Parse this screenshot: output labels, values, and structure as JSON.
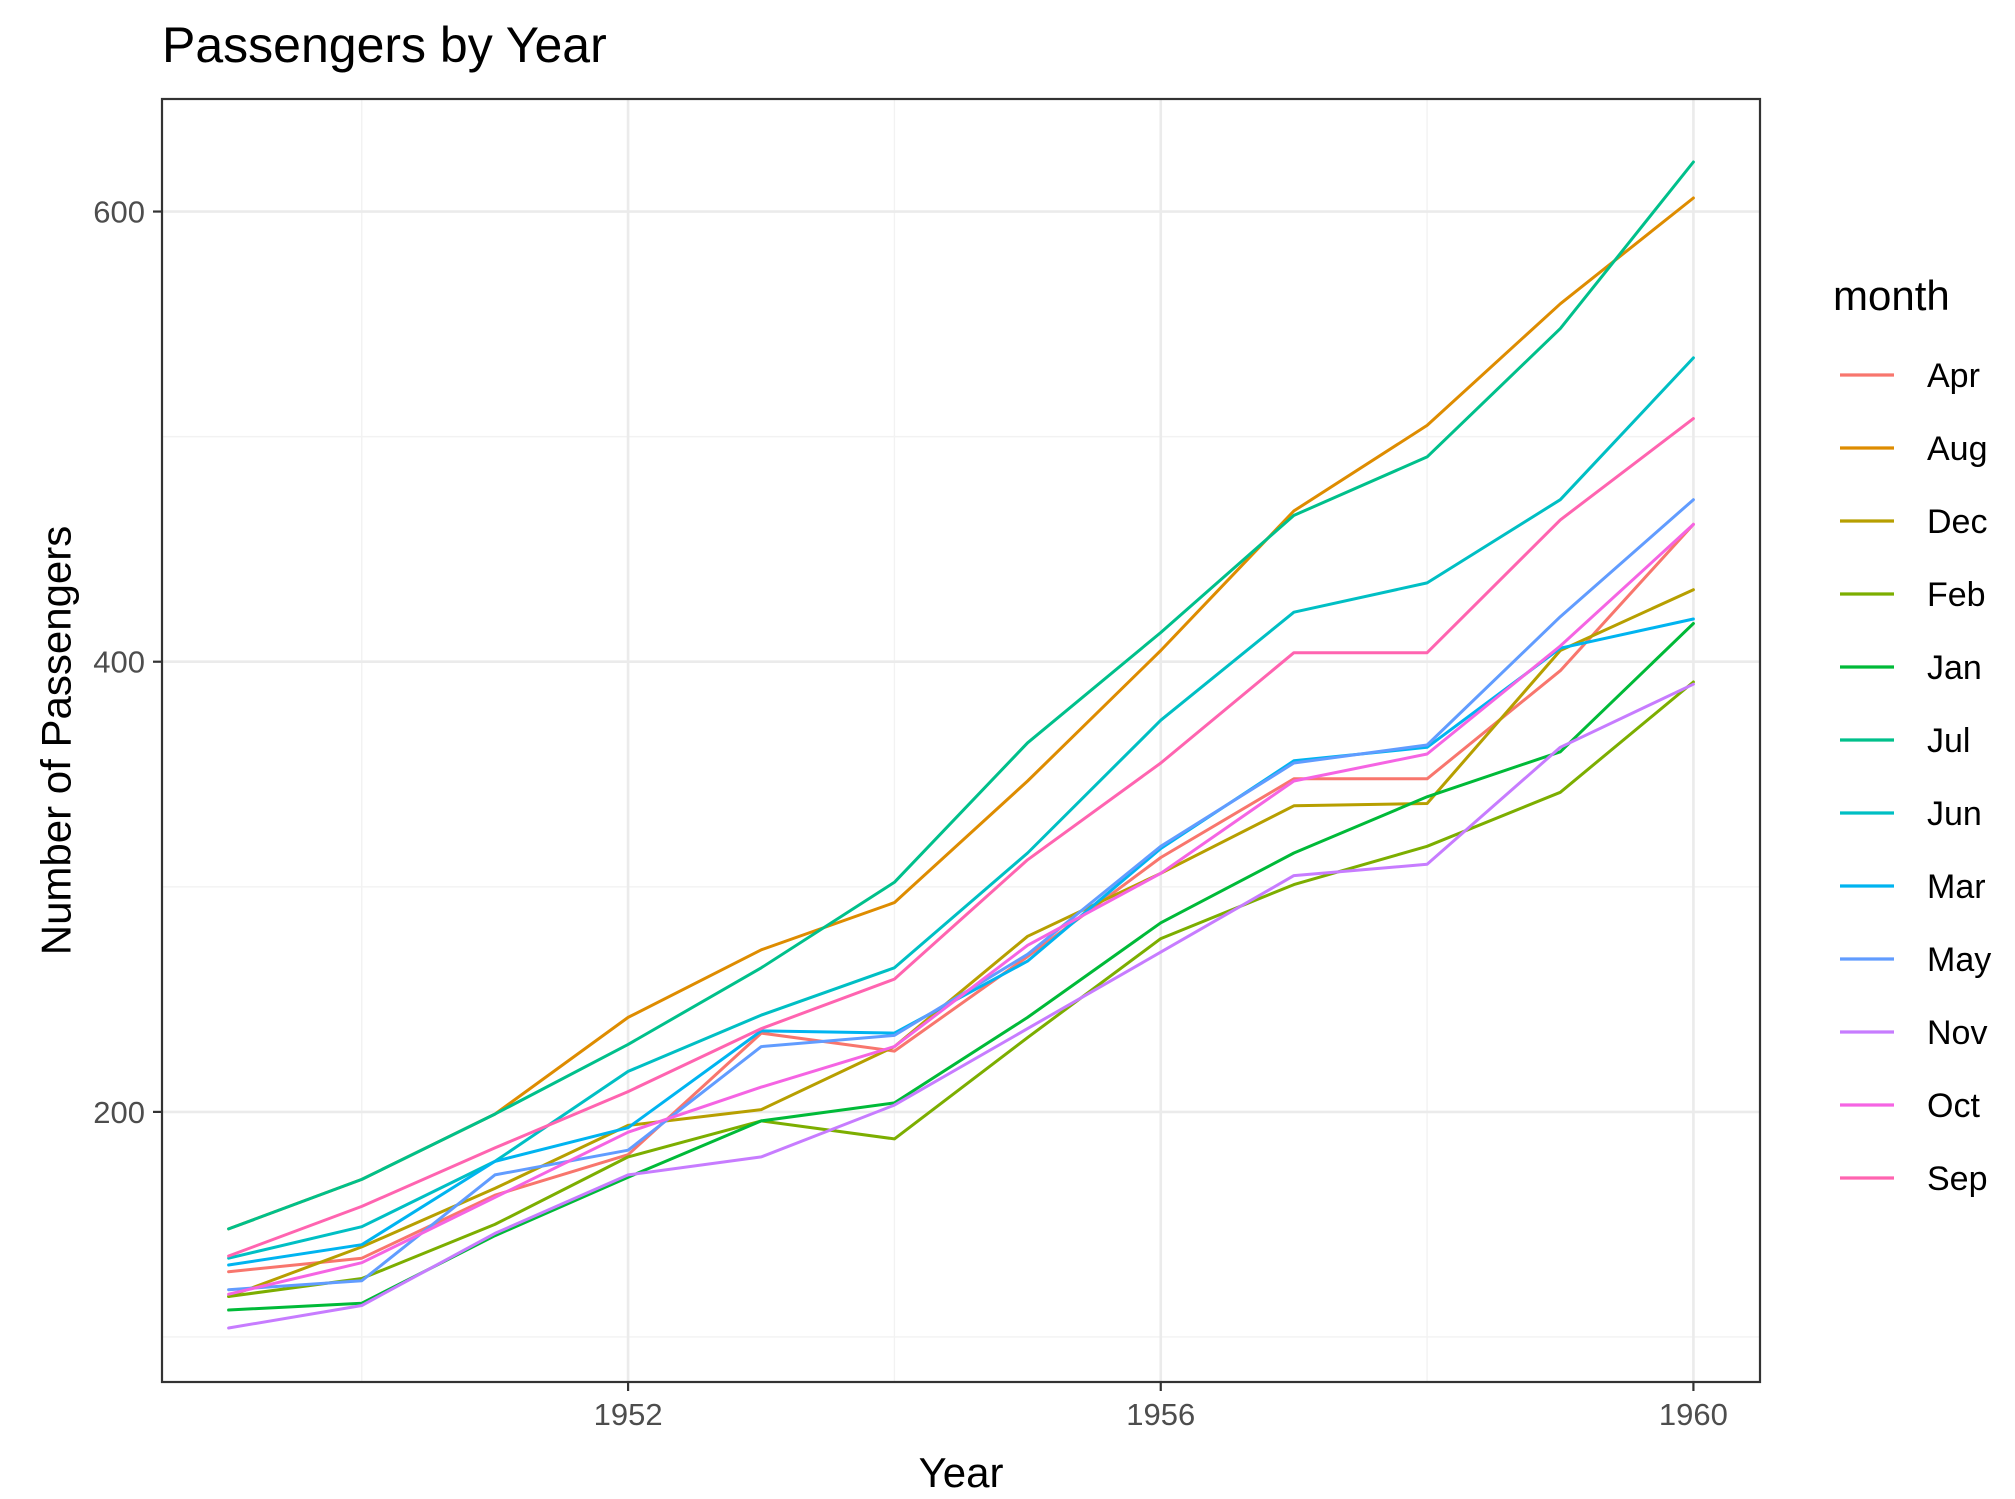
{
  "chart_data": {
    "type": "line",
    "title": "Passengers by Year",
    "xlabel": "Year",
    "ylabel": "Number of Passengers",
    "legend_title": "month",
    "legend_position": "right",
    "grid": true,
    "xlim": [
      1948.5,
      1960.5
    ],
    "ylim": [
      80,
      650
    ],
    "x_ticks": [
      1952,
      1956,
      1960
    ],
    "y_ticks": [
      200,
      400,
      600
    ],
    "x": [
      1949,
      1950,
      1951,
      1952,
      1953,
      1954,
      1955,
      1956,
      1957,
      1958,
      1959,
      1960
    ],
    "series": [
      {
        "name": "Apr",
        "color": "#F8766D",
        "values": [
          129,
          135,
          163,
          181,
          235,
          227,
          269,
          313,
          348,
          348,
          396,
          461
        ]
      },
      {
        "name": "Aug",
        "color": "#DE8C00",
        "values": [
          148,
          170,
          199,
          242,
          272,
          293,
          347,
          405,
          467,
          505,
          559,
          606
        ]
      },
      {
        "name": "Dec",
        "color": "#B79F00",
        "values": [
          118,
          140,
          166,
          194,
          201,
          229,
          278,
          306,
          336,
          337,
          405,
          432
        ]
      },
      {
        "name": "Feb",
        "color": "#7CAE00",
        "values": [
          118,
          126,
          150,
          180,
          196,
          188,
          233,
          277,
          301,
          318,
          342,
          391
        ]
      },
      {
        "name": "Jan",
        "color": "#00BA38",
        "values": [
          112,
          115,
          145,
          171,
          196,
          204,
          242,
          284,
          315,
          340,
          360,
          417
        ]
      },
      {
        "name": "Jul",
        "color": "#00C08B",
        "values": [
          148,
          170,
          199,
          230,
          264,
          302,
          364,
          413,
          465,
          491,
          548,
          622
        ]
      },
      {
        "name": "Jun",
        "color": "#00BFC4",
        "values": [
          135,
          149,
          178,
          218,
          243,
          264,
          315,
          374,
          422,
          435,
          472,
          535
        ]
      },
      {
        "name": "Mar",
        "color": "#00B4F0",
        "values": [
          132,
          141,
          178,
          193,
          236,
          235,
          267,
          317,
          356,
          362,
          406,
          419
        ]
      },
      {
        "name": "May",
        "color": "#619CFF",
        "values": [
          121,
          125,
          172,
          183,
          229,
          234,
          270,
          318,
          355,
          363,
          420,
          472
        ]
      },
      {
        "name": "Nov",
        "color": "#C77CFF",
        "values": [
          104,
          114,
          146,
          172,
          180,
          203,
          237,
          271,
          305,
          310,
          362,
          390
        ]
      },
      {
        "name": "Oct",
        "color": "#F564E3",
        "values": [
          119,
          133,
          162,
          191,
          211,
          229,
          274,
          306,
          347,
          359,
          407,
          461
        ]
      },
      {
        "name": "Sep",
        "color": "#FF64B0",
        "values": [
          136,
          158,
          184,
          209,
          237,
          259,
          312,
          355,
          404,
          404,
          463,
          508
        ]
      }
    ]
  }
}
